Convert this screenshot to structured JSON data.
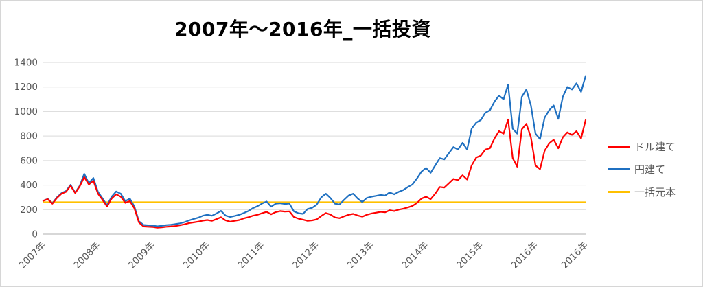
{
  "colors": {
    "background": "#FFFFFF",
    "gridline": "#D9D9D9",
    "axis_line": "#BFBFBF",
    "tick_text": "#595959",
    "title_text": "#000000",
    "series_red": "#FF0000",
    "series_blue": "#1F70C1",
    "series_orange": "#FFC000"
  },
  "chart_data": {
    "type": "line",
    "title": "2007年〜2016年_一括投資",
    "xlabel": "",
    "ylabel": "",
    "x_start": "2007-01",
    "x_end": "2016-12",
    "x_interval": "monthly",
    "x_tick_labels": [
      "2007年",
      "2008年",
      "2009年",
      "2010年",
      "2011年",
      "2012年",
      "2013年",
      "2014年",
      "2015年",
      "2016年",
      "2016年"
    ],
    "y_ticks": [
      0,
      200,
      400,
      600,
      800,
      1000,
      1200,
      1400
    ],
    "ylim": [
      0,
      1400
    ],
    "grid": "horizontal",
    "legend_position": "right",
    "series": [
      {
        "id": "usd",
        "name": "ドル建て",
        "color": "#FF0000",
        "values": [
          272,
          285,
          248,
          295,
          330,
          345,
          395,
          335,
          390,
          465,
          405,
          435,
          330,
          280,
          225,
          290,
          325,
          305,
          255,
          270,
          210,
          95,
          62,
          60,
          58,
          52,
          55,
          60,
          62,
          66,
          72,
          80,
          90,
          96,
          102,
          110,
          115,
          108,
          122,
          138,
          112,
          102,
          108,
          115,
          128,
          138,
          150,
          158,
          170,
          182,
          162,
          180,
          188,
          184,
          186,
          140,
          126,
          118,
          108,
          112,
          120,
          148,
          172,
          160,
          136,
          130,
          145,
          158,
          165,
          152,
          142,
          158,
          168,
          175,
          182,
          178,
          195,
          188,
          200,
          208,
          218,
          230,
          255,
          290,
          305,
          285,
          330,
          385,
          380,
          415,
          450,
          440,
          480,
          445,
          560,
          625,
          640,
          690,
          700,
          780,
          840,
          820,
          935,
          620,
          550,
          855,
          900,
          790,
          560,
          530,
          680,
          740,
          770,
          700,
          790,
          830,
          810,
          840,
          780,
          930
        ]
      },
      {
        "id": "jpy",
        "name": "円建て",
        "color": "#1F70C1",
        "values": [
          272,
          288,
          252,
          300,
          335,
          352,
          402,
          338,
          395,
          492,
          415,
          458,
          345,
          292,
          235,
          305,
          348,
          330,
          268,
          290,
          225,
          105,
          75,
          72,
          70,
          64,
          68,
          74,
          76,
          82,
          88,
          98,
          112,
          124,
          134,
          150,
          158,
          150,
          168,
          190,
          152,
          140,
          148,
          158,
          172,
          188,
          212,
          228,
          250,
          266,
          224,
          248,
          252,
          246,
          250,
          186,
          170,
          165,
          205,
          215,
          240,
          300,
          330,
          295,
          248,
          242,
          280,
          315,
          330,
          290,
          262,
          295,
          305,
          312,
          320,
          315,
          340,
          325,
          345,
          360,
          385,
          405,
          455,
          510,
          540,
          500,
          560,
          620,
          610,
          660,
          710,
          690,
          745,
          690,
          860,
          910,
          930,
          990,
          1010,
          1080,
          1130,
          1100,
          1220,
          860,
          820,
          1120,
          1180,
          1050,
          820,
          775,
          950,
          1010,
          1050,
          940,
          1120,
          1200,
          1180,
          1230,
          1160,
          1290
        ]
      },
      {
        "id": "principal",
        "name": "一括元本",
        "color": "#FFC000",
        "constant_value": 260
      }
    ]
  }
}
